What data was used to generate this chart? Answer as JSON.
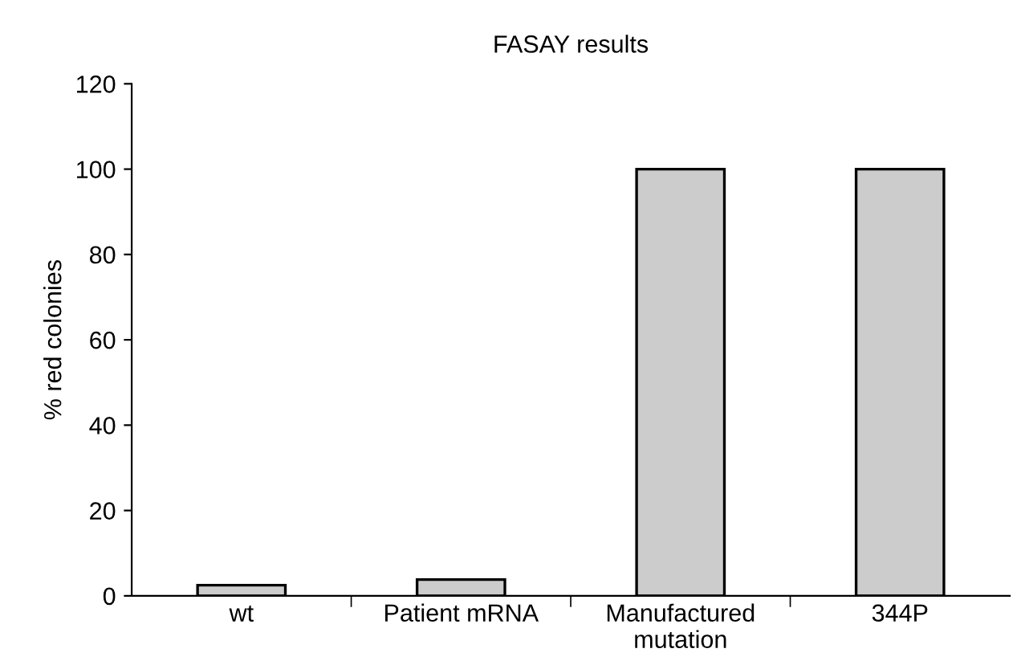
{
  "chart_data": {
    "type": "bar",
    "title": "FASAY results",
    "ylabel": "% red colonies",
    "categories": [
      "wt",
      "Patient mRNA",
      "Manufactured\nmutation",
      "344P"
    ],
    "values": [
      2.5,
      3.8,
      100,
      100
    ],
    "color": "#cccccc",
    "ylim": [
      0,
      120
    ],
    "yticks": [
      0,
      20,
      40,
      60,
      80,
      100,
      120
    ],
    "grid": false,
    "legend": false
  }
}
